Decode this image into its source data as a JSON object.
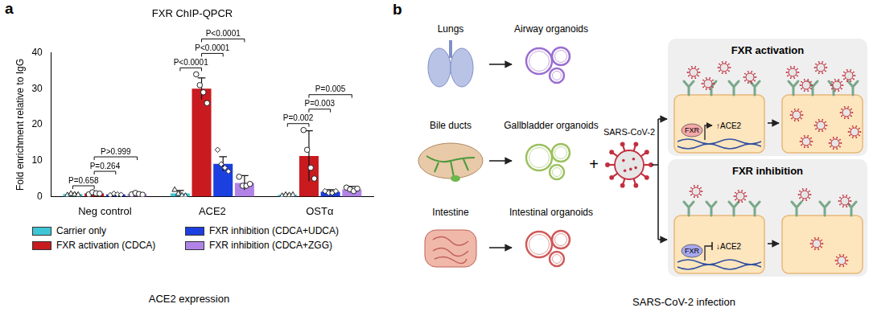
{
  "chart_data": {
    "type": "bar",
    "title": "FXR ChIP-QPCR",
    "y_label": "Fold enrichment relative to IgG",
    "categories": [
      "Neg control",
      "ACE2",
      "OSTα"
    ],
    "ylim": [
      0,
      40
    ],
    "yticks": [
      0,
      10,
      20,
      30,
      40
    ],
    "grid": false,
    "legend": "bottom",
    "series": [
      {
        "name": "Carrier only",
        "color": "#3ec6d6",
        "marker": "triangle",
        "values": [
          0.7,
          0.9,
          0.5
        ],
        "errors": [
          0.2,
          0.8,
          0.2
        ],
        "points": [
          [
            0.5,
            0.9,
            0.7,
            0.6
          ],
          [
            2.0,
            0.9,
            0.4,
            0.3
          ],
          [
            0.3,
            0.6,
            0.5,
            0.6
          ]
        ]
      },
      {
        "name": "FXR activation (CDCA)",
        "color": "#c81a1f",
        "marker": "circle",
        "values": [
          0.9,
          30,
          11.3
        ],
        "errors": [
          0.3,
          3.0,
          7.0
        ],
        "points": [
          [
            0.6,
            1.2,
            0.9,
            0.8
          ],
          [
            34,
            31,
            29,
            26
          ],
          [
            18.5,
            13,
            8,
            5
          ]
        ]
      },
      {
        "name": "FXR inhibition (CDCA+UDCA)",
        "color": "#1c3fe0",
        "marker": "diamond",
        "values": [
          0.6,
          9.1,
          1.3
        ],
        "errors": [
          0.2,
          2.0,
          0.6
        ],
        "points": [
          [
            0.4,
            0.8,
            0.6,
            0.5
          ],
          [
            13,
            9,
            8,
            7
          ],
          [
            1.5,
            1.0,
            1.0,
            1.5
          ]
        ]
      },
      {
        "name": "FXR inhibition (CDCA+ZGG)",
        "color": "#b283e6",
        "marker": "circle",
        "values": [
          0.7,
          3.8,
          2.0
        ],
        "errors": [
          0.3,
          2.0,
          0.8
        ],
        "points": [
          [
            0.6,
            1.0,
            0.7,
            0.5
          ],
          [
            5.5,
            3.0,
            3.0,
            3.5
          ],
          [
            2.5,
            2.0,
            1.5,
            2.2
          ]
        ]
      }
    ],
    "comparisons": [
      {
        "category": "Neg control",
        "from": "Carrier only",
        "to": "FXR activation (CDCA)",
        "label": "P=0.658"
      },
      {
        "category": "Neg control",
        "from": "FXR activation (CDCA)",
        "to": "FXR inhibition (CDCA+UDCA)",
        "label": "P=0.264"
      },
      {
        "category": "Neg control",
        "from": "FXR activation (CDCA)",
        "to": "FXR inhibition (CDCA+ZGG)",
        "label": "P>0.999"
      },
      {
        "category": "ACE2",
        "from": "Carrier only",
        "to": "FXR activation (CDCA)",
        "label": "P<0.0001"
      },
      {
        "category": "ACE2",
        "from": "FXR activation (CDCA)",
        "to": "FXR inhibition (CDCA+UDCA)",
        "label": "P<0.0001"
      },
      {
        "category": "ACE2",
        "from": "FXR activation (CDCA)",
        "to": "FXR inhibition (CDCA+ZGG)",
        "label": "P<0.0001"
      },
      {
        "category": "OSTα",
        "from": "Carrier only",
        "to": "FXR activation (CDCA)",
        "label": "P=0.002"
      },
      {
        "category": "OSTα",
        "from": "FXR activation (CDCA)",
        "to": "FXR inhibition (CDCA+UDCA)",
        "label": "P=0.003"
      },
      {
        "category": "OSTα",
        "from": "FXR activation (CDCA)",
        "to": "FXR inhibition (CDCA+ZGG)",
        "label": "P=0.005"
      }
    ]
  },
  "panel_labels": [
    "a",
    "b"
  ],
  "captions": [
    "ACE2 expression",
    "SARS-CoV-2 infection"
  ],
  "diagram": {
    "sources": [
      {
        "organ": "Lungs",
        "organoid": "Airway organoids",
        "color": "#9a6fd0"
      },
      {
        "organ": "Bile ducts",
        "organoid": "Gallbladder organoids",
        "color": "#9cc060"
      },
      {
        "organ": "Intestine",
        "organoid": "Intestinal organoids",
        "color": "#d05a5a"
      }
    ],
    "operator": "+",
    "virus": "SARS-CoV-2",
    "outcomes": [
      {
        "title": "FXR activation",
        "factor": "FXR",
        "effect": "↑ACE2"
      },
      {
        "title": "FXR inhibition",
        "factor": "FXR",
        "effect": "↓ACE2"
      }
    ]
  }
}
